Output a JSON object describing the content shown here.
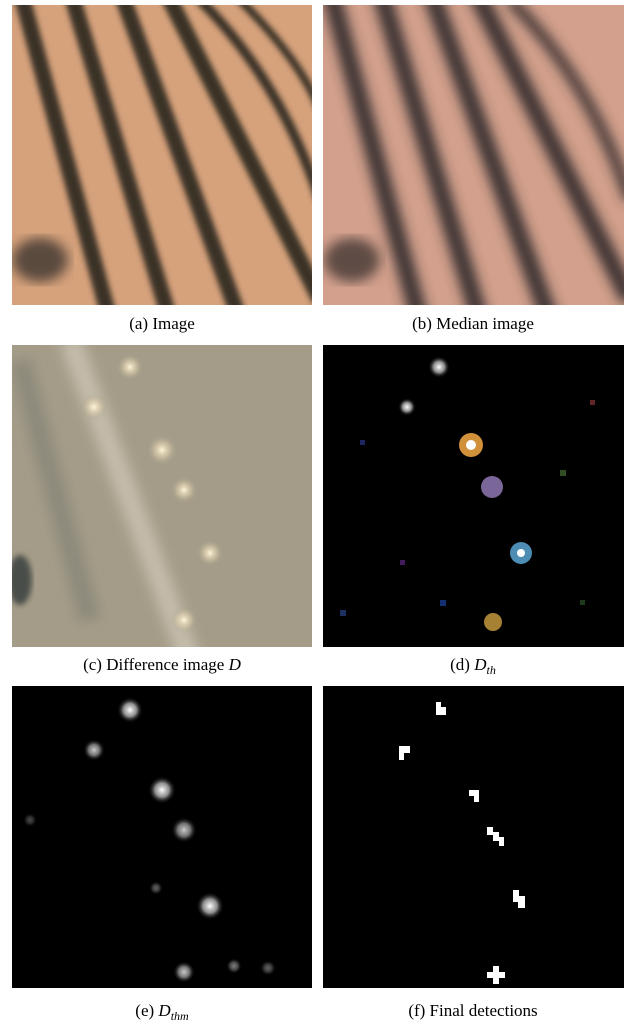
{
  "figure": {
    "captions": [
      {
        "prefix": "(a) Image"
      },
      {
        "prefix": "(b) Median image"
      },
      {
        "prefix": "(c) Difference image",
        "math": "D"
      },
      {
        "prefix": "(d)",
        "math": "D",
        "sub": "th"
      },
      {
        "prefix": "(e)",
        "math": "D",
        "sub": "thm"
      },
      {
        "prefix": "(f) Final detections"
      }
    ]
  }
}
